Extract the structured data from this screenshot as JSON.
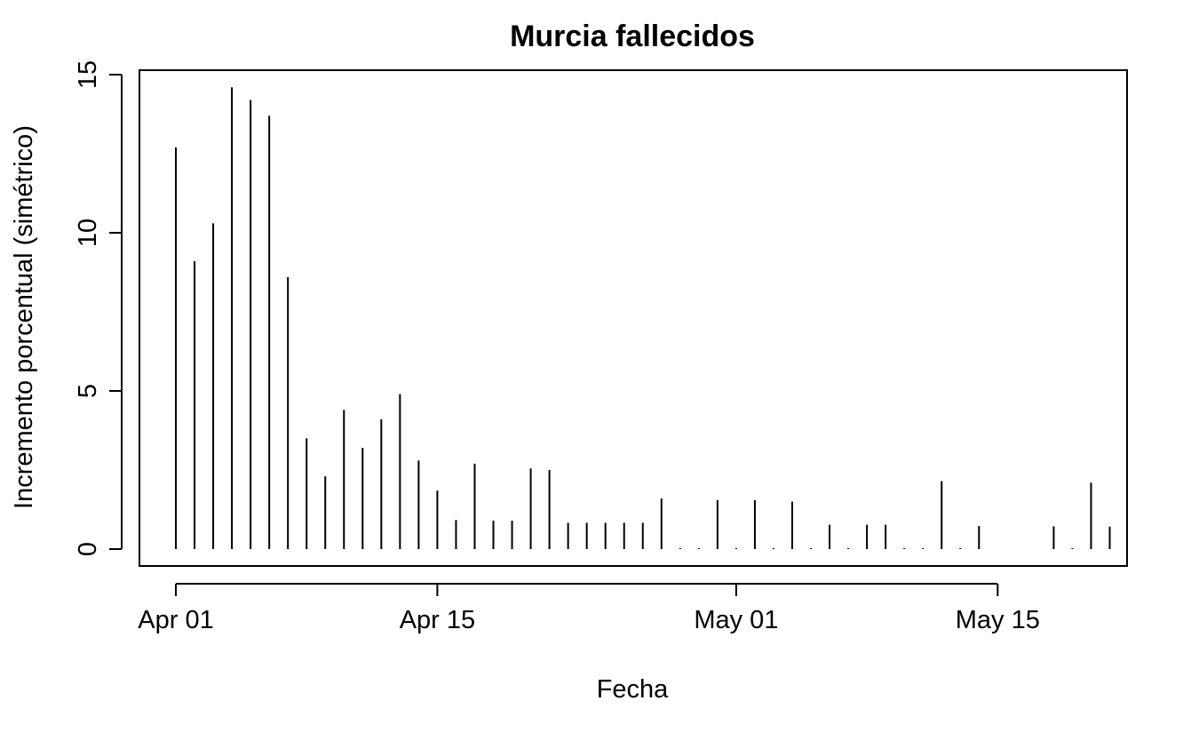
{
  "chart_data": {
    "type": "bar",
    "style": "histogram-spikes",
    "title": "Murcia fallecidos",
    "xlabel": "Fecha",
    "ylabel": "Incremento porcentual (simétrico)",
    "x_start": "2020-04-01",
    "xlim": [
      "2020-04-01",
      "2020-05-19"
    ],
    "ylim": [
      0,
      15
    ],
    "x_ticks": [
      {
        "date": "2020-04-01",
        "label": "Apr 01"
      },
      {
        "date": "2020-04-15",
        "label": "Apr 15"
      },
      {
        "date": "2020-05-01",
        "label": "May 01"
      },
      {
        "date": "2020-05-15",
        "label": "May 15"
      }
    ],
    "y_ticks": [
      0,
      5,
      10,
      15
    ],
    "grid": false,
    "series": [
      {
        "dates": [
          "2020-04-01",
          "2020-04-02",
          "2020-04-03",
          "2020-04-04",
          "2020-04-05",
          "2020-04-06",
          "2020-04-07",
          "2020-04-08",
          "2020-04-09",
          "2020-04-10",
          "2020-04-11",
          "2020-04-12",
          "2020-04-13",
          "2020-04-14",
          "2020-04-15",
          "2020-04-16",
          "2020-04-17",
          "2020-04-18",
          "2020-04-19",
          "2020-04-20",
          "2020-04-21",
          "2020-04-22",
          "2020-04-23",
          "2020-04-24",
          "2020-04-25",
          "2020-04-26",
          "2020-04-27",
          "2020-04-28",
          "2020-04-29",
          "2020-04-30",
          "2020-05-01",
          "2020-05-02",
          "2020-05-03",
          "2020-05-04",
          "2020-05-05",
          "2020-05-06",
          "2020-05-07",
          "2020-05-08",
          "2020-05-09",
          "2020-05-10",
          "2020-05-11",
          "2020-05-12",
          "2020-05-13",
          "2020-05-14",
          "2020-05-15",
          "2020-05-16",
          "2020-05-17",
          "2020-05-18",
          "2020-05-19",
          "2020-05-20",
          "2020-05-21"
        ],
        "values": [
          12.7,
          9.1,
          10.3,
          14.6,
          14.2,
          13.7,
          8.6,
          3.5,
          2.3,
          4.4,
          3.2,
          4.1,
          4.9,
          2.8,
          1.85,
          0.92,
          2.7,
          0.9,
          0.9,
          2.55,
          2.5,
          0.83,
          0.83,
          0.83,
          0.83,
          0.83,
          1.6,
          0.0,
          0.0,
          1.55,
          0.0,
          1.55,
          0.0,
          1.5,
          0.0,
          0.77,
          0.0,
          0.77,
          0.77,
          0.0,
          0.0,
          2.15,
          0.0,
          0.73,
          null,
          null,
          null,
          0.72,
          0.0,
          2.1,
          0.71
        ]
      }
    ]
  }
}
